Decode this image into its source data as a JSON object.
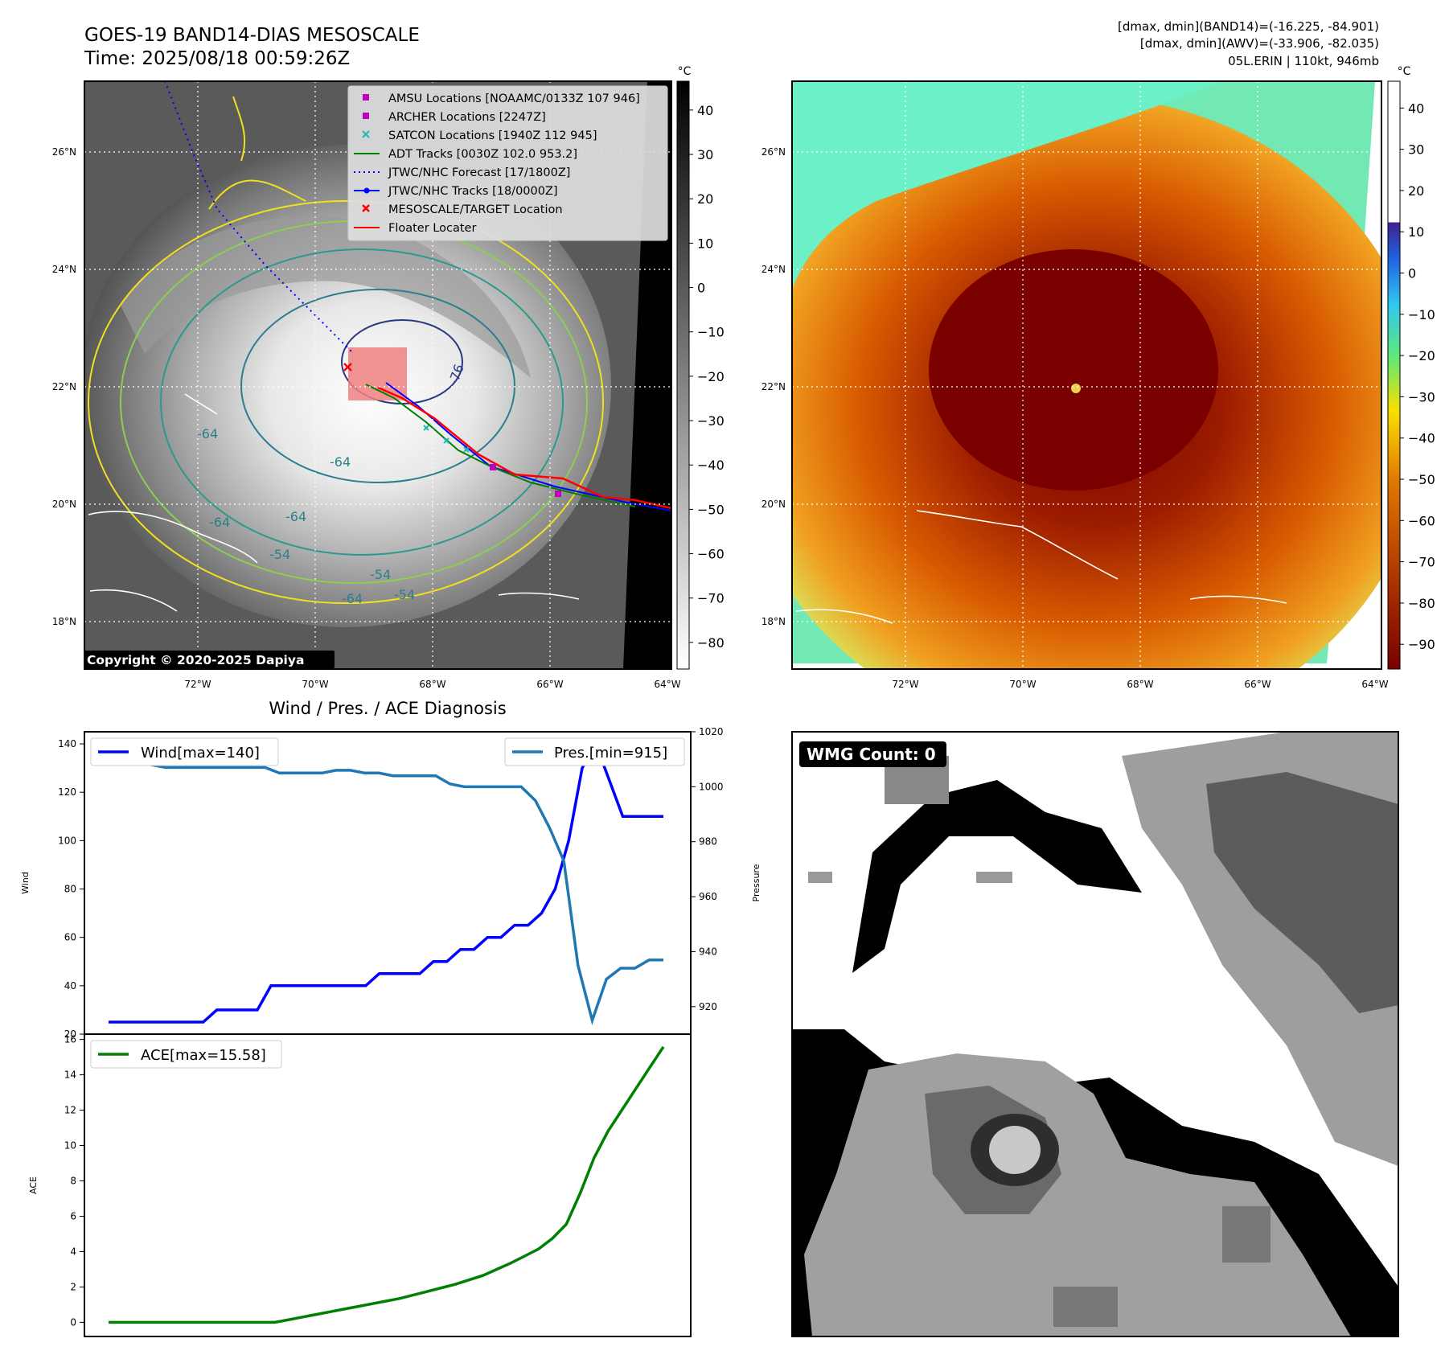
{
  "header": {
    "title_line1": "GOES-19 BAND14-DIAS MESOSCALE",
    "title_line2": "Time: 2025/08/18 00:59:26Z",
    "stats_line1": "[dmax, dmin](BAND14)=(-16.225, -84.901)",
    "stats_line2": "[dmax, dmin](AWV)=(-33.906, -82.035)",
    "stats_line3": "05L.ERIN | 110kt, 946mb"
  },
  "map": {
    "lon_ticks": [
      "72°W",
      "70°W",
      "68°W",
      "66°W",
      "64°W"
    ],
    "lat_ticks": [
      "26°N",
      "24°N",
      "22°N",
      "20°N",
      "18°N"
    ],
    "copyright": "Copyright © 2020-2025 Dapiya",
    "contour_labels": [
      "-76",
      "-64",
      "-64",
      "-64",
      "-54",
      "-54",
      "-64",
      "-54",
      "-64"
    ],
    "legend": [
      {
        "label": "AMSU Locations [NOAAMC/0133Z 107 946]",
        "marker": "square",
        "color": "#c000c0"
      },
      {
        "label": "ARCHER Locations [2247Z]",
        "marker": "square",
        "color": "#c000c0"
      },
      {
        "label": "SATCON Locations [1940Z 112 945]",
        "marker": "x",
        "color": "#1fb8b8"
      },
      {
        "label": "ADT Tracks [0030Z 102.0 953.2]",
        "marker": "line",
        "color": "#008000"
      },
      {
        "label": "JTWC/NHC Forecast [17/1800Z]",
        "marker": "dotted",
        "color": "#0000ff"
      },
      {
        "label": "JTWC/NHC Tracks [18/0000Z]",
        "marker": "line-dot",
        "color": "#0000ff"
      },
      {
        "label": "MESOSCALE/TARGET Location",
        "marker": "x",
        "color": "#ff0000"
      },
      {
        "label": "Floater Locater",
        "marker": "line",
        "color": "#ff0000"
      }
    ]
  },
  "colorbars": {
    "unit": "°C",
    "left_ticks": [
      "40",
      "30",
      "20",
      "10",
      "0",
      "−10",
      "−20",
      "−30",
      "−40",
      "−50",
      "−60",
      "−70",
      "−80"
    ],
    "right_ticks": [
      "40",
      "30",
      "20",
      "10",
      "0",
      "−10",
      "−20",
      "−30",
      "−40",
      "−50",
      "−60",
      "−70",
      "−80",
      "−90"
    ]
  },
  "wmg": {
    "count_label": "WMG Count: 0"
  },
  "colors": {
    "wind": "#0000ff",
    "pressure": "#1f77b4",
    "ace": "#008000"
  },
  "chart_data": [
    {
      "type": "line",
      "title": "Wind / Pres. / ACE Diagnosis",
      "ylabel": "Wind",
      "ylim": [
        20,
        145
      ],
      "yticks": [
        "20",
        "40",
        "60",
        "80",
        "100",
        "120",
        "140"
      ],
      "series": [
        {
          "name": "Wind[max=140]",
          "axis": "left",
          "values": [
            25,
            25,
            25,
            25,
            25,
            25,
            25,
            25,
            30,
            30,
            30,
            30,
            40,
            40,
            40,
            40,
            40,
            40,
            40,
            40,
            45,
            45,
            45,
            45,
            50,
            50,
            55,
            55,
            60,
            60,
            65,
            65,
            70,
            80,
            100,
            130,
            140,
            125,
            110,
            110,
            110,
            110
          ]
        }
      ]
    },
    {
      "type": "line",
      "ylabel": "Pressure",
      "ylim": [
        910,
        1020
      ],
      "yticks": [
        "920",
        "940",
        "960",
        "980",
        "1000",
        "1020"
      ],
      "series": [
        {
          "name": "Pres.[min=915]",
          "axis": "right",
          "values": [
            1014,
            1014,
            1009,
            1008,
            1007,
            1007,
            1007,
            1007,
            1007,
            1007,
            1007,
            1007,
            1005,
            1005,
            1005,
            1005,
            1006,
            1006,
            1005,
            1005,
            1004,
            1004,
            1004,
            1004,
            1001,
            1000,
            1000,
            1000,
            1000,
            1000,
            995,
            985,
            973,
            935,
            915,
            930,
            934,
            934,
            937,
            937
          ]
        }
      ]
    },
    {
      "type": "line",
      "ylabel": "ACE",
      "ylim": [
        -0.8,
        16.3
      ],
      "yticks": [
        "0",
        "2",
        "4",
        "6",
        "8",
        "10",
        "12",
        "14",
        "16"
      ],
      "series": [
        {
          "name": "ACE[max=15.58]",
          "values": [
            0,
            0,
            0,
            0,
            0,
            0,
            0,
            0,
            0,
            0,
            0,
            0,
            0,
            0.15,
            0.3,
            0.45,
            0.6,
            0.75,
            0.9,
            1.05,
            1.2,
            1.35,
            1.55,
            1.75,
            1.95,
            2.15,
            2.4,
            2.65,
            3.0,
            3.35,
            3.75,
            4.15,
            4.75,
            5.55,
            7.3,
            9.3,
            10.8,
            12.0,
            13.2,
            14.4,
            15.58
          ]
        }
      ]
    }
  ]
}
